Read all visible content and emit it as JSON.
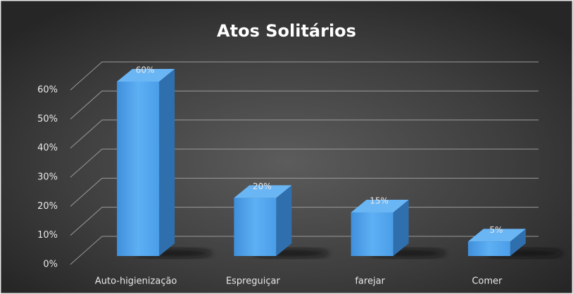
{
  "chart_data": {
    "type": "bar3d",
    "title": "Atos Solitários",
    "categories": [
      "Auto-higienização",
      "Espreguiçar",
      "farejar",
      "Comer"
    ],
    "values": [
      60,
      20,
      15,
      5
    ],
    "value_labels": [
      "60%",
      "20%",
      "15%",
      "5%"
    ],
    "color": "#4a9ee8",
    "ylim": [
      0,
      60
    ],
    "yticks": [
      {
        "value": 0,
        "label": "0%"
      },
      {
        "value": 10,
        "label": "10%"
      },
      {
        "value": 20,
        "label": "20%"
      },
      {
        "value": 30,
        "label": "30%"
      },
      {
        "value": 40,
        "label": "40%"
      },
      {
        "value": 50,
        "label": "50%"
      },
      {
        "value": 60,
        "label": "60%"
      }
    ],
    "grid": true
  }
}
